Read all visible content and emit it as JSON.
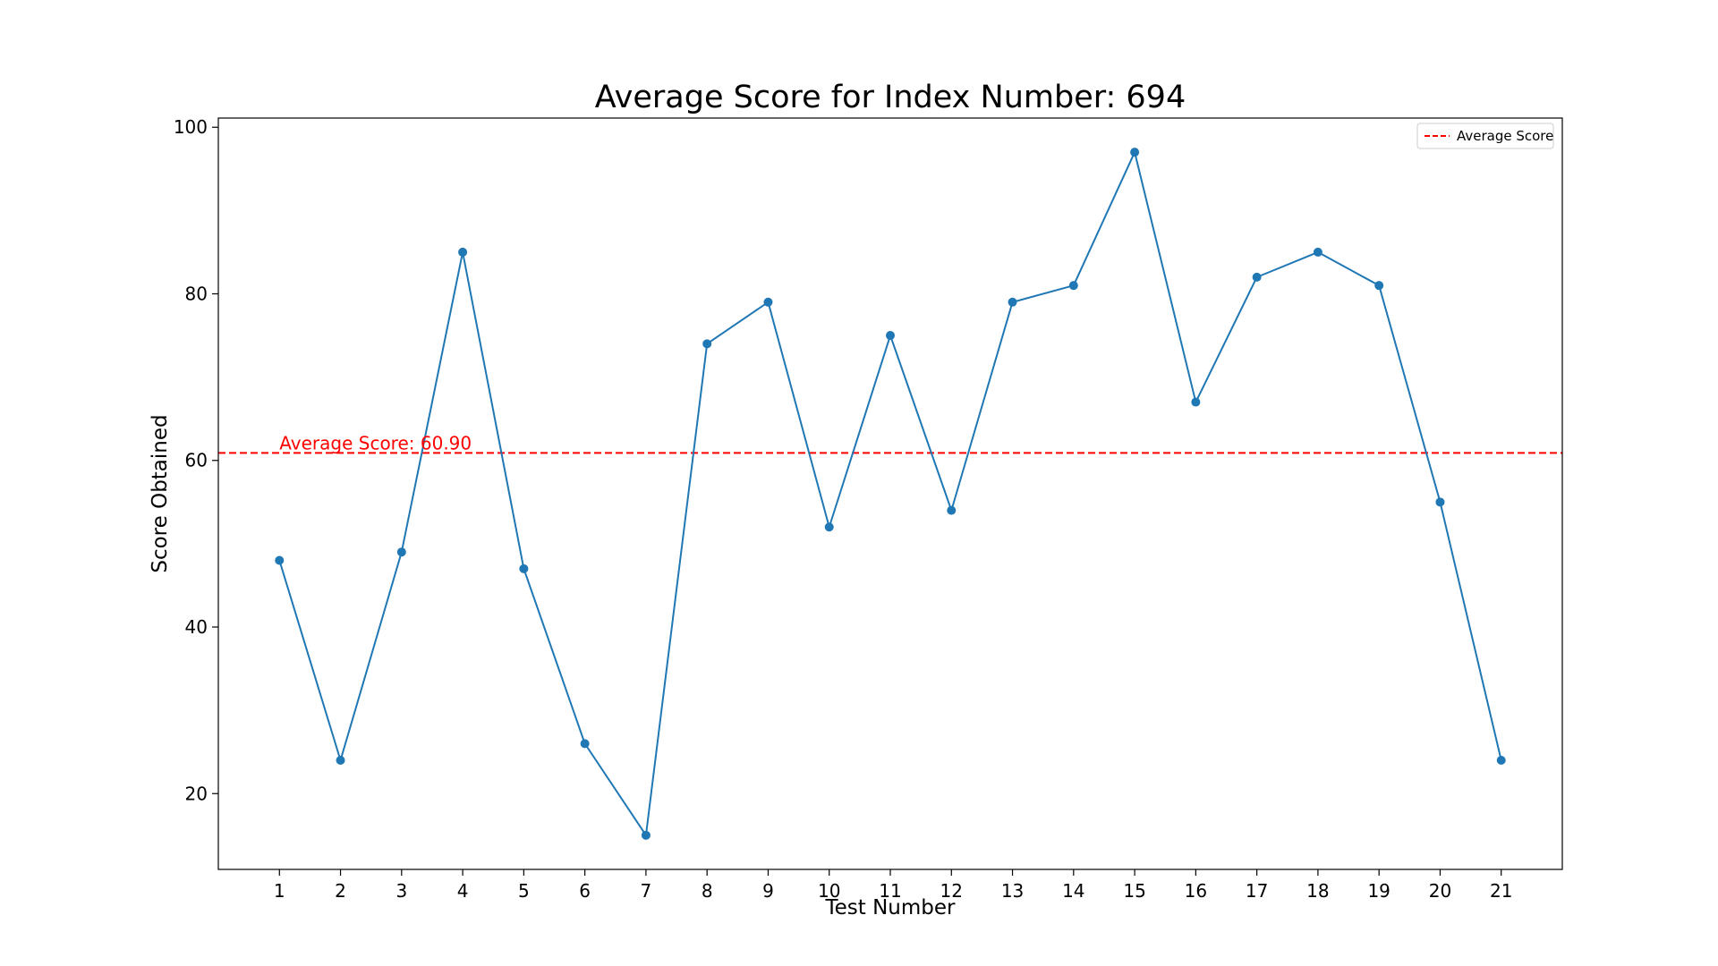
{
  "chart_data": {
    "type": "line",
    "title": "Average Score for Index Number: 694",
    "xlabel": "Test Number",
    "ylabel": "Score Obtained",
    "x": [
      1,
      2,
      3,
      4,
      5,
      6,
      7,
      8,
      9,
      10,
      11,
      12,
      13,
      14,
      15,
      16,
      17,
      18,
      19,
      20,
      21
    ],
    "x_ticks": [
      "1",
      "2",
      "3",
      "4",
      "5",
      "6",
      "7",
      "8",
      "9",
      "10",
      "11",
      "12",
      "13",
      "14",
      "15",
      "16",
      "17",
      "18",
      "19",
      "20",
      "21"
    ],
    "series": [
      {
        "values": [
          48,
          24,
          49,
          85,
          47,
          26,
          15,
          74,
          79,
          52,
          75,
          54,
          79,
          81,
          97,
          67,
          82,
          85,
          81,
          55,
          24
        ],
        "color": "#1f77b4",
        "marker": "circle"
      }
    ],
    "y_ticks": [
      "20",
      "40",
      "60",
      "80",
      "100"
    ],
    "y_tick_values": [
      20,
      40,
      60,
      80,
      100
    ],
    "xlim": [
      0,
      22
    ],
    "ylim": [
      10.9,
      101.1
    ],
    "grid": false,
    "average": {
      "value": 60.9,
      "label": "Average Score: 60.90",
      "legend_label": "Average Score",
      "color": "#ff0000",
      "style": "dashed"
    },
    "legend_position": "top-right"
  }
}
